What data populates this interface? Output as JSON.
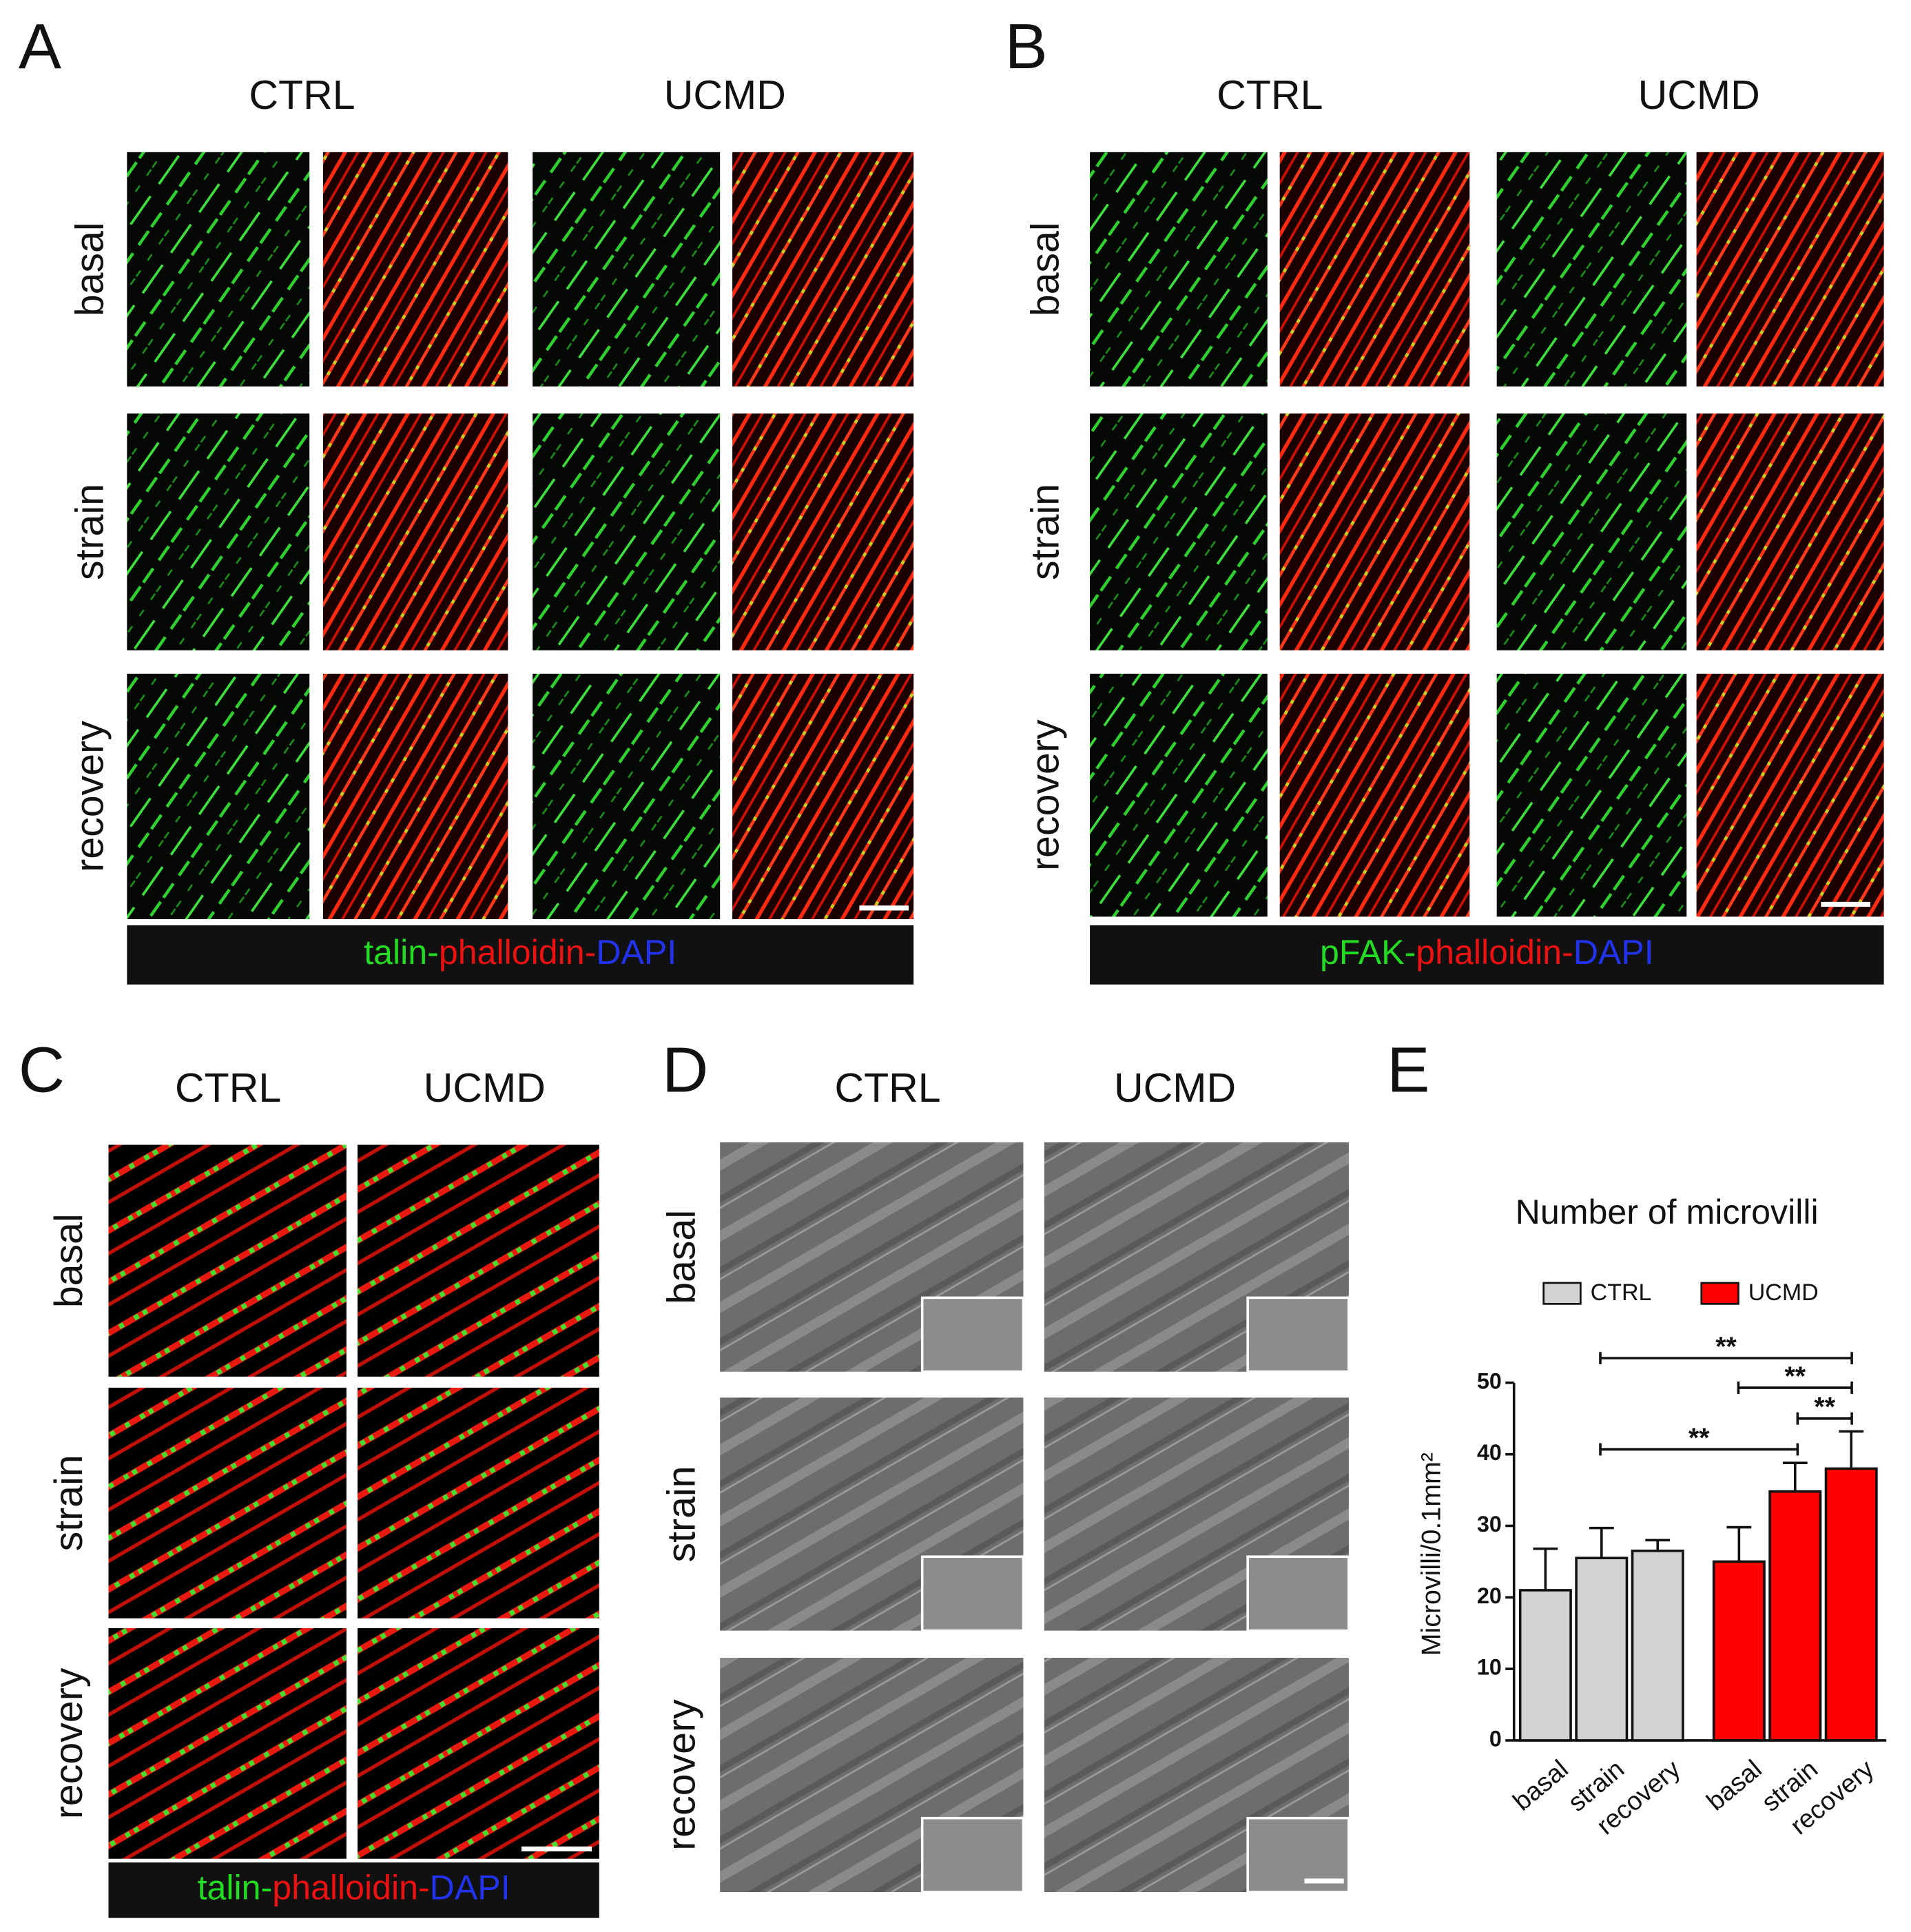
{
  "panels": [
    {
      "label": "A",
      "columns": [
        "CTRL",
        "UCMD"
      ],
      "rows": [
        "basal",
        "strain",
        "recovery"
      ],
      "stain": [
        "talin-",
        "phalloidin-",
        "DAPI"
      ]
    },
    {
      "label": "B",
      "columns": [
        "CTRL",
        "UCMD"
      ],
      "rows": [
        "basal",
        "strain",
        "recovery"
      ],
      "stain": [
        "pFAK-",
        "phalloidin-",
        "DAPI"
      ]
    },
    {
      "label": "C",
      "columns": [
        "CTRL",
        "UCMD"
      ],
      "rows": [
        "basal",
        "strain",
        "recovery"
      ],
      "stain": [
        "talin-",
        "phalloidin-",
        "DAPI"
      ]
    },
    {
      "label": "D",
      "columns": [
        "CTRL",
        "UCMD"
      ],
      "rows": [
        "basal",
        "strain",
        "recovery"
      ]
    },
    {
      "label": "E"
    }
  ],
  "chart_data": {
    "type": "bar",
    "title": "Number of microvilli",
    "y_label": "Microvilli/0.1mm²",
    "categories": [
      "basal",
      "strain",
      "recovery"
    ],
    "series": [
      {
        "name": "CTRL",
        "color": "#d3d3d3",
        "values": [
          21,
          25.5,
          26.5
        ],
        "error": [
          5.8,
          4.2,
          1.5
        ]
      },
      {
        "name": "UCMD",
        "color": "#ff0000",
        "values": [
          25,
          34.8,
          38
        ],
        "error": [
          4.8,
          4,
          5.2
        ]
      }
    ],
    "ylim": [
      0,
      50
    ],
    "yticks": [
      0,
      10,
      20,
      30,
      40,
      50
    ],
    "annotations": [
      "**",
      "**",
      "**",
      "**"
    ]
  }
}
